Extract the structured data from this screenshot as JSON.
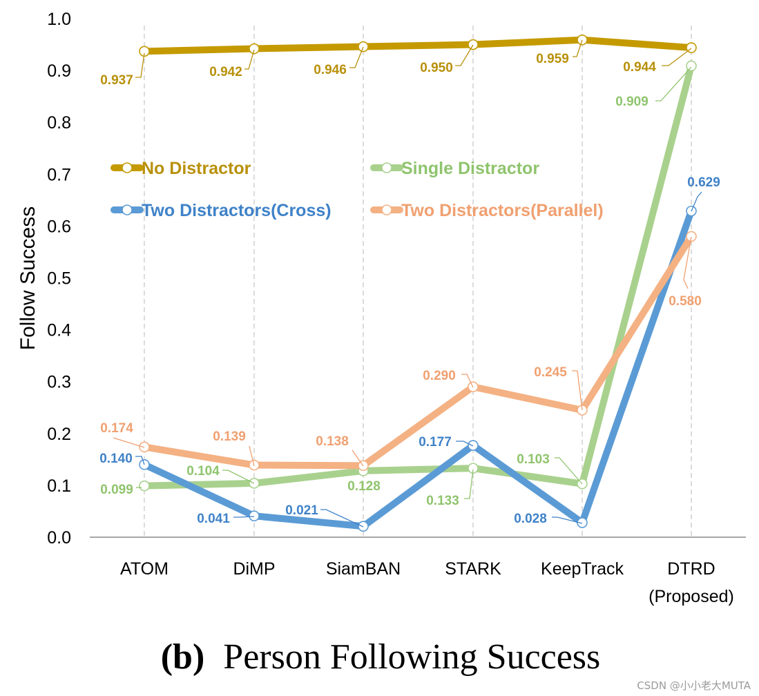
{
  "chart_data": {
    "type": "line",
    "ylabel": "Follow Success",
    "xlabel": "",
    "ylim": [
      0.0,
      1.0
    ],
    "yticks": [
      "0.0",
      "0.1",
      "0.2",
      "0.3",
      "0.4",
      "0.5",
      "0.6",
      "0.7",
      "0.8",
      "0.9",
      "1.0"
    ],
    "categories": [
      [
        "ATOM"
      ],
      [
        "DiMP"
      ],
      [
        "SiamBAN"
      ],
      [
        "STARK"
      ],
      [
        "KeepTrack"
      ],
      [
        "DTRD",
        "(Proposed)"
      ]
    ],
    "grid": "vertical dashed",
    "legend_position": "upper-left (inside plot)",
    "series": [
      {
        "name": "No Distractor",
        "color": "#c49a00",
        "values": [
          0.937,
          0.942,
          0.946,
          0.95,
          0.959,
          0.944
        ],
        "labels": [
          "0.937",
          "0.942",
          "0.946",
          "0.950",
          "0.959",
          "0.944"
        ]
      },
      {
        "name": "Single Distractor",
        "color": "#a9d18e",
        "values": [
          0.099,
          0.104,
          0.128,
          0.133,
          0.103,
          0.909
        ],
        "labels": [
          "0.099",
          "0.104",
          "0.128",
          "0.133",
          "0.103",
          "0.909"
        ]
      },
      {
        "name": "Two Distractors(Cross)",
        "color": "#5b9bd5",
        "values": [
          0.14,
          0.041,
          0.021,
          0.177,
          0.028,
          0.629
        ],
        "labels": [
          "0.140",
          "0.041",
          "0.021",
          "0.177",
          "0.028",
          "0.629"
        ]
      },
      {
        "name": "Two Distractors(Parallel)",
        "color": "#f4b183",
        "values": [
          0.174,
          0.139,
          0.138,
          0.29,
          0.245,
          0.58
        ],
        "labels": [
          "0.174",
          "0.139",
          "0.138",
          "0.290",
          "0.245",
          "0.580"
        ]
      }
    ]
  },
  "caption": {
    "prefix": "(b)",
    "text": "Person Following Success"
  },
  "watermark": "CSDN @小小老大MUTA",
  "colors": {
    "label_no_distractor": "#b8900a",
    "label_single": "#8fc46d",
    "label_cross": "#3f82c8",
    "label_parallel": "#f0a070",
    "gridline": "#c8c8c8",
    "axis": "#888888"
  }
}
